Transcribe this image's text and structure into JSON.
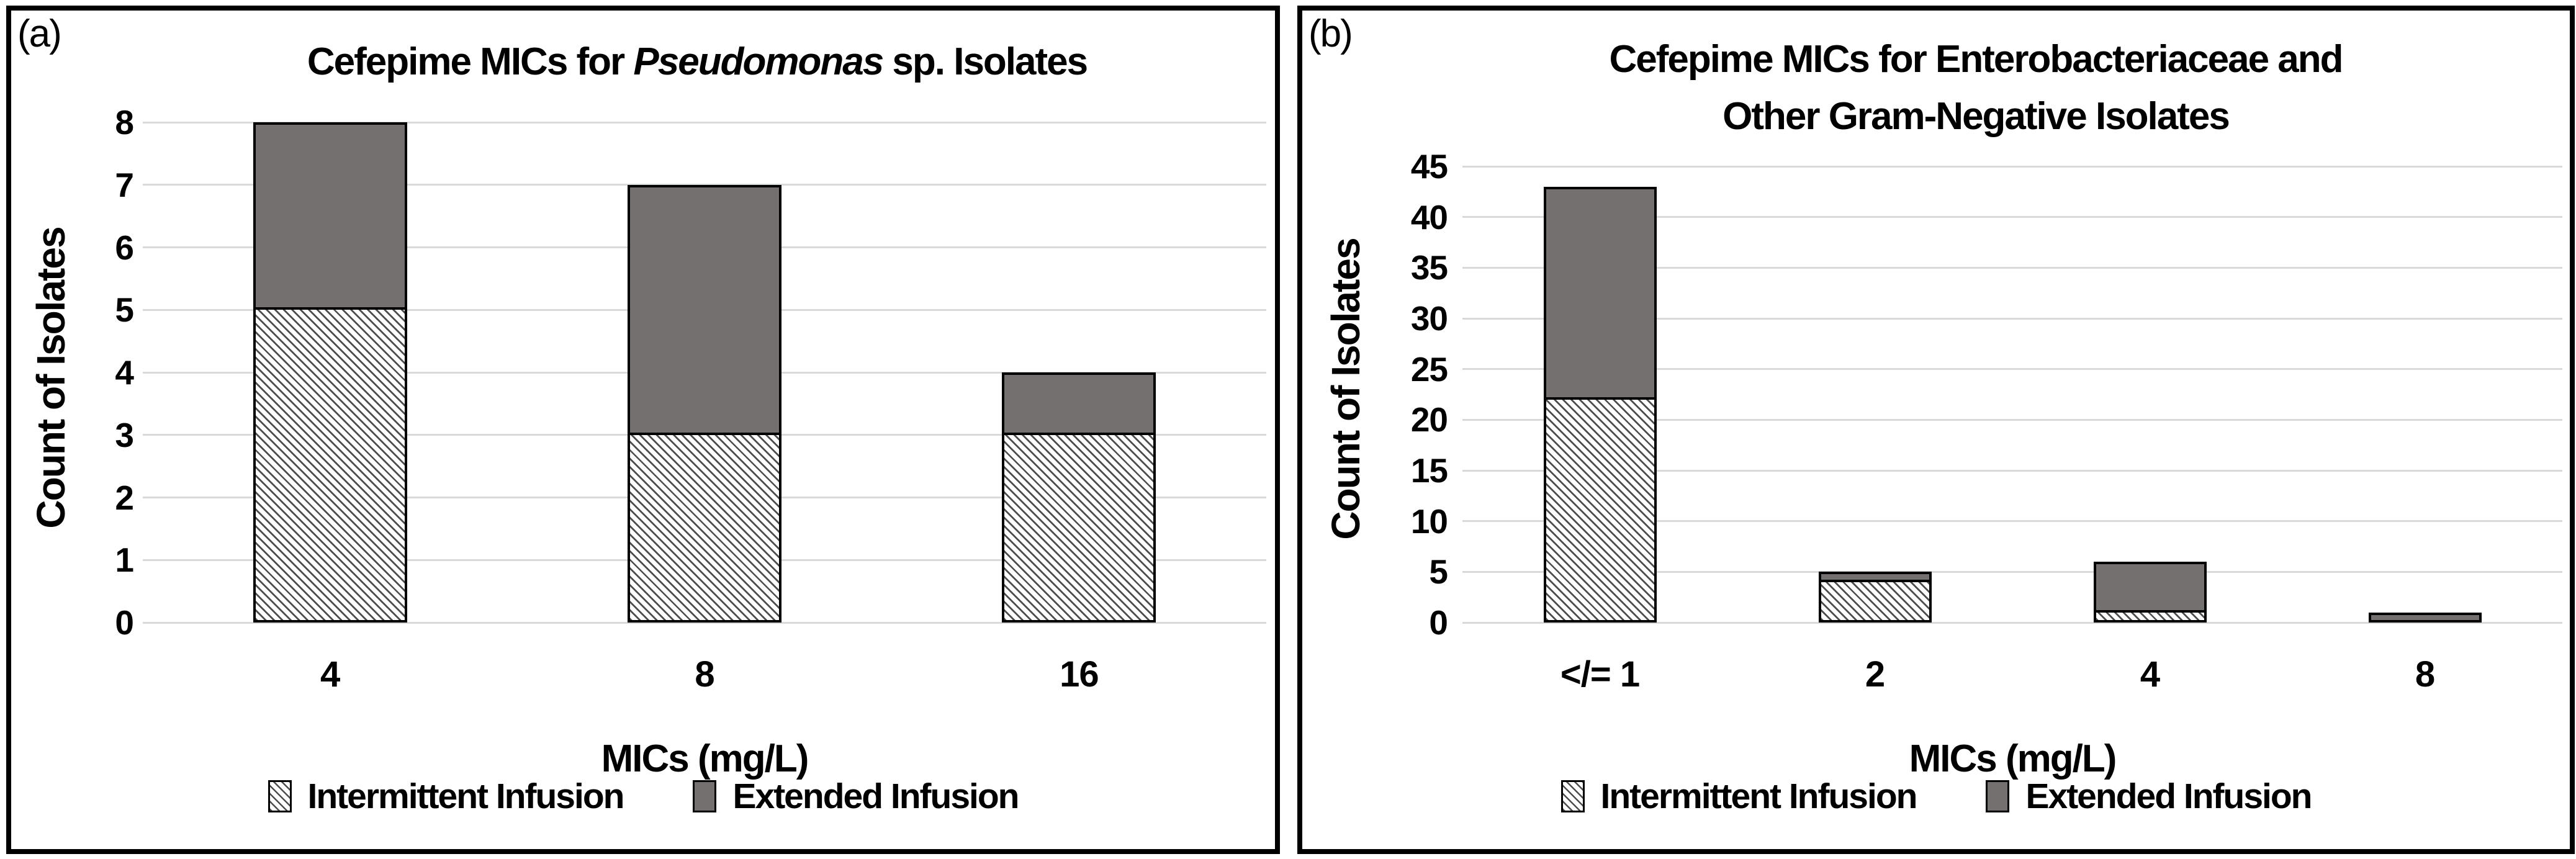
{
  "colors": {
    "extended_infusion_gray": "#757070",
    "hatch_line": "#4d4d4d",
    "gridline": "#d9d9d9",
    "bar_border": "#000000",
    "panel_border": "#000000",
    "background": "#ffffff"
  },
  "chart_data": [
    {
      "type": "bar",
      "stacked": true,
      "panel_marker": "(a)",
      "title": "Cefepime MICs for Pseudomonas sp. Isolates",
      "title_lines": [
        [
          {
            "text": "Cefepime MICs for "
          },
          {
            "text": "Pseudomonas",
            "italic": true
          },
          {
            "text": " sp. Isolates"
          }
        ]
      ],
      "categories": [
        "4",
        "8",
        "16"
      ],
      "series": [
        {
          "name": "Intermittent Infusion",
          "pattern": "diagonal-hatch",
          "values": [
            5,
            3,
            3
          ]
        },
        {
          "name": "Extended Infusion",
          "pattern": "solid-gray",
          "values": [
            3,
            4,
            1
          ]
        }
      ],
      "totals": [
        8,
        7,
        4
      ],
      "xlabel": "MICs (mg/L)",
      "ylabel": "Count of Isolates",
      "ylim": [
        0,
        8
      ],
      "ytick_step": 1,
      "yticks": [
        0,
        1,
        2,
        3,
        4,
        5,
        6,
        7,
        8
      ],
      "grid": true,
      "legend_position": "bottom"
    },
    {
      "type": "bar",
      "stacked": true,
      "panel_marker": "(b)",
      "title": "Cefepime MICs for Enterobacteriaceae and Other Gram-Negative Isolates",
      "title_lines": [
        [
          {
            "text": "Cefepime MICs for Enterobacteriaceae and"
          }
        ],
        [
          {
            "text": "Other Gram-Negative Isolates"
          }
        ]
      ],
      "categories": [
        "</= 1",
        "2",
        "4",
        "8"
      ],
      "series": [
        {
          "name": "Intermittent Infusion",
          "pattern": "diagonal-hatch",
          "values": [
            22,
            4,
            1,
            0
          ]
        },
        {
          "name": "Extended Infusion",
          "pattern": "solid-gray",
          "values": [
            21,
            1,
            5,
            1
          ]
        }
      ],
      "totals": [
        43,
        5,
        6,
        1
      ],
      "xlabel": "MICs (mg/L)",
      "ylabel": "Count of Isolates",
      "ylim": [
        0,
        45
      ],
      "ytick_step": 5,
      "yticks": [
        0,
        5,
        10,
        15,
        20,
        25,
        30,
        35,
        40,
        45
      ],
      "grid": true,
      "legend_position": "bottom"
    }
  ]
}
